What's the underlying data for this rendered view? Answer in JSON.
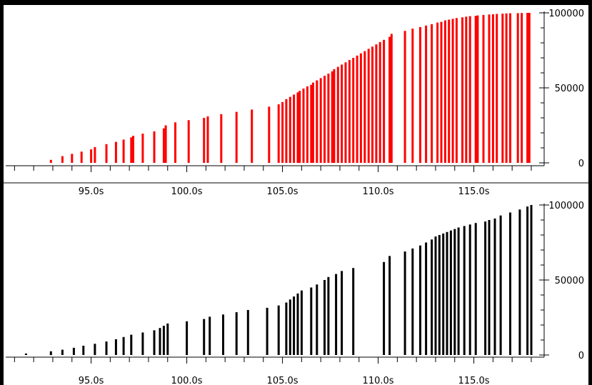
{
  "chart_data": [
    {
      "type": "bar",
      "color": "#ff0000",
      "xlim": [
        90.8,
        118.3
      ],
      "ylim": [
        0,
        100000
      ],
      "x_ticks": [
        "95.0s",
        "100.0s",
        "105.0s",
        "110.0s",
        "115.0s"
      ],
      "x_tick_values": [
        95,
        100,
        105,
        110,
        115
      ],
      "y_ticks": [
        "0",
        "50000",
        "100000"
      ],
      "y_tick_values": [
        0,
        50000,
        100000
      ],
      "grid": false,
      "series": [
        {
          "x": [
            92.9,
            93.5,
            94.0,
            94.5,
            95.0,
            95.2,
            95.8,
            96.3,
            96.7,
            97.1,
            97.2,
            97.7,
            98.3,
            98.8,
            98.9,
            99.4,
            100.1,
            100.9,
            101.1,
            101.8,
            102.6,
            103.4,
            104.3,
            104.8,
            105.0,
            105.2,
            105.4,
            105.6,
            105.8,
            105.9,
            106.1,
            106.3,
            106.5,
            106.6,
            106.8,
            107.0,
            107.2,
            107.4,
            107.6,
            107.7,
            107.9,
            108.1,
            108.3,
            108.5,
            108.7,
            108.9,
            109.1,
            109.3,
            109.5,
            109.7,
            109.9,
            110.1,
            110.3,
            110.6,
            110.7,
            111.4,
            111.8,
            112.2,
            112.5,
            112.8,
            113.1,
            113.3,
            113.5,
            113.7,
            113.9,
            114.1,
            114.4,
            114.6,
            114.8,
            115.1,
            115.2,
            115.5,
            115.8,
            116.0,
            116.2,
            116.5,
            116.7,
            116.9,
            117.3,
            117.5,
            117.8,
            117.9
          ],
          "values": [
            2000,
            4500,
            6000,
            7500,
            9000,
            10500,
            12500,
            14000,
            15500,
            17000,
            18000,
            19500,
            21000,
            23000,
            25000,
            27000,
            28500,
            30000,
            31000,
            32500,
            34000,
            35500,
            37500,
            39000,
            40500,
            42500,
            44000,
            45500,
            47000,
            48000,
            49500,
            51000,
            52000,
            53500,
            55000,
            56500,
            58000,
            59500,
            61000,
            62500,
            64000,
            65500,
            67000,
            68500,
            70000,
            71500,
            73000,
            74500,
            76000,
            77500,
            79000,
            80500,
            82000,
            84000,
            86000,
            88000,
            89500,
            90500,
            91500,
            92500,
            93500,
            94000,
            95000,
            95500,
            96000,
            96500,
            97000,
            97500,
            97800,
            98000,
            98300,
            98600,
            98900,
            99100,
            99300,
            99500,
            99600,
            99700,
            99800,
            99900,
            100000,
            100000
          ]
        }
      ]
    },
    {
      "type": "bar",
      "color": "#000000",
      "xlim": [
        90.8,
        118.3
      ],
      "ylim": [
        0,
        100000
      ],
      "x_ticks": [
        "95.0s",
        "100.0s",
        "105.0s",
        "110.0s",
        "115.0s"
      ],
      "x_tick_values": [
        95,
        100,
        105,
        110,
        115
      ],
      "y_ticks": [
        "0",
        "50000",
        "100000"
      ],
      "y_tick_values": [
        0,
        50000,
        100000
      ],
      "grid": false,
      "series": [
        {
          "x": [
            91.6,
            92.9,
            93.5,
            94.1,
            94.6,
            95.2,
            95.8,
            96.3,
            96.7,
            97.1,
            97.7,
            98.3,
            98.6,
            98.8,
            99.0,
            100.0,
            100.9,
            101.2,
            101.9,
            102.6,
            103.2,
            104.2,
            104.8,
            105.2,
            105.4,
            105.6,
            105.8,
            106.0,
            106.5,
            106.8,
            107.2,
            107.4,
            107.8,
            108.1,
            108.7,
            110.3,
            110.6,
            111.4,
            111.8,
            112.2,
            112.5,
            112.8,
            113.0,
            113.2,
            113.4,
            113.6,
            113.8,
            114.0,
            114.2,
            114.5,
            114.8,
            115.1,
            115.6,
            115.8,
            116.1,
            116.4,
            116.9,
            117.4,
            117.8,
            118.0
          ],
          "values": [
            1000,
            2500,
            3500,
            4800,
            6200,
            7500,
            9000,
            10500,
            12000,
            13500,
            15000,
            16500,
            18000,
            19500,
            21000,
            22500,
            24000,
            25500,
            27000,
            28500,
            30000,
            31500,
            33000,
            35000,
            37000,
            39000,
            41000,
            43000,
            45000,
            47000,
            50000,
            52000,
            54000,
            56000,
            58000,
            62000,
            66000,
            69000,
            71000,
            73000,
            75000,
            77000,
            79000,
            80000,
            81000,
            82000,
            83000,
            84000,
            85000,
            86000,
            87000,
            88000,
            89000,
            90000,
            91000,
            93000,
            95000,
            97000,
            99000,
            100000
          ]
        }
      ]
    }
  ]
}
